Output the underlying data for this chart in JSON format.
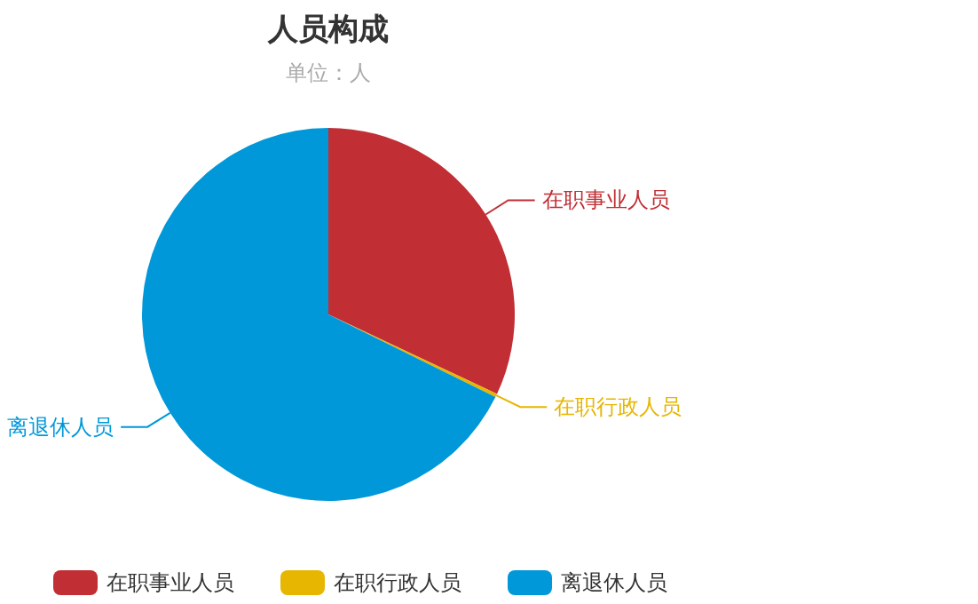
{
  "chart_data": {
    "type": "pie",
    "title": "人员构成",
    "subtitle": "单位：人",
    "categories": [
      "在职事业人员",
      "在职行政人员",
      "离退休人员"
    ],
    "values": [
      32,
      0.3,
      67.7
    ],
    "colors": [
      "#c12e34",
      "#e6b600",
      "#0098d9"
    ],
    "legend": "bottom"
  }
}
